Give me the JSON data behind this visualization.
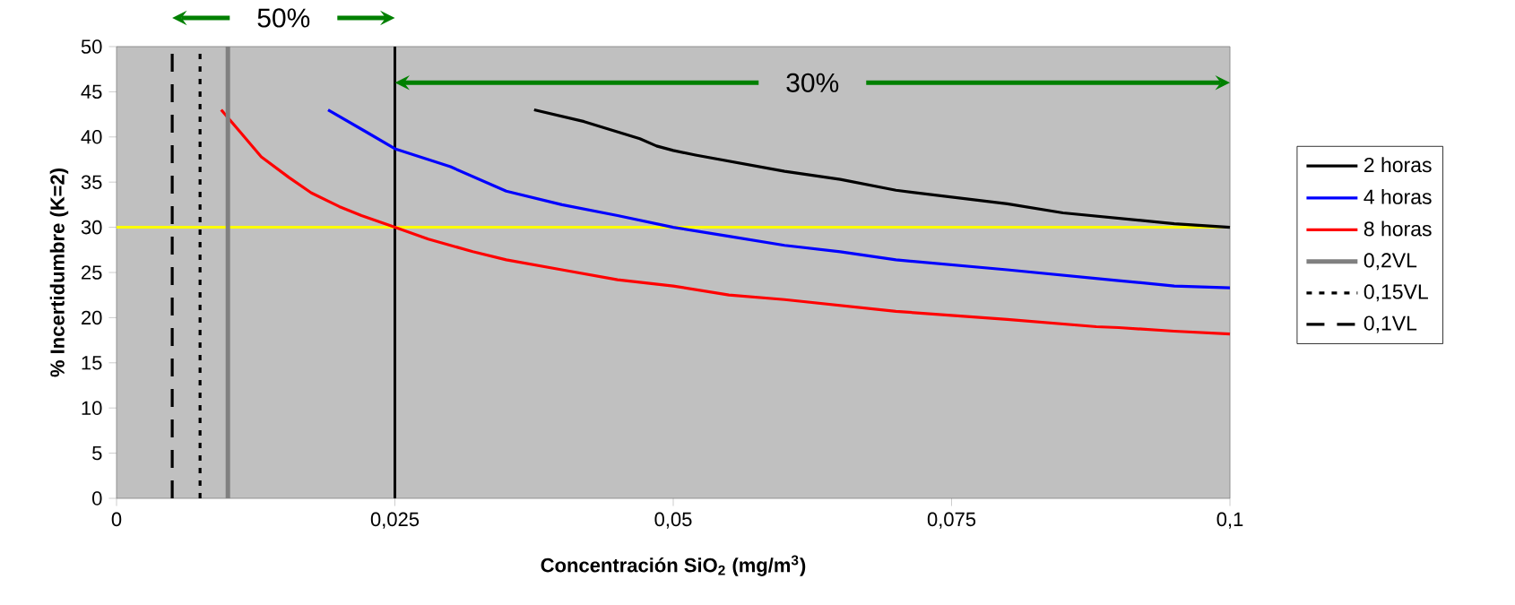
{
  "chart_data": {
    "type": "line",
    "xlabel": "Concentración SiO$_{2}$ (mg/m$^{3}$)",
    "ylabel": "% Incertidumbre (K=2)",
    "xlim": [
      0,
      0.1
    ],
    "ylim": [
      0,
      50
    ],
    "xticks": [
      0,
      {
        "value": 0.025,
        "label": "0,025"
      },
      {
        "value": 0.05,
        "label": "0,05"
      },
      {
        "value": 0.075,
        "label": "0,075"
      },
      {
        "value": 0.1,
        "label": "0,1"
      }
    ],
    "yticks": [
      0,
      5,
      10,
      15,
      20,
      25,
      30,
      35,
      40,
      45,
      50
    ],
    "grid": false,
    "legend": "right",
    "series": [
      {
        "name": "2 horas",
        "color": "#000000",
        "line_style": "solid",
        "x": [
          0.0375,
          0.042,
          0.047,
          0.0485,
          0.05,
          0.052,
          0.06,
          0.065,
          0.07,
          0.08,
          0.085,
          0.09,
          0.095,
          0.1
        ],
        "values": [
          43,
          41.7,
          39.8,
          39,
          38.5,
          38,
          36.2,
          35.3,
          34.1,
          32.6,
          31.6,
          31,
          30.4,
          30
        ]
      },
      {
        "name": "4 horas",
        "color": "#0000ff",
        "line_style": "solid",
        "x": [
          0.019,
          0.0225,
          0.025,
          0.03,
          0.035,
          0.04,
          0.045,
          0.05,
          0.055,
          0.06,
          0.065,
          0.07,
          0.08,
          0.09,
          0.095,
          0.1
        ],
        "values": [
          43,
          40.5,
          38.7,
          36.7,
          34,
          32.5,
          31.3,
          30,
          29,
          28,
          27.3,
          26.4,
          25.3,
          24.1,
          23.5,
          23.3
        ]
      },
      {
        "name": "8 horas",
        "color": "#ff0000",
        "line_style": "solid",
        "x": [
          0.0094,
          0.011,
          0.013,
          0.0155,
          0.0175,
          0.02,
          0.022,
          0.025,
          0.028,
          0.032,
          0.035,
          0.04,
          0.045,
          0.05,
          0.055,
          0.06,
          0.07,
          0.08,
          0.088,
          0.09,
          0.095,
          0.1
        ],
        "values": [
          43,
          40.7,
          37.8,
          35.5,
          33.8,
          32.3,
          31.3,
          30,
          28.7,
          27.3,
          26.4,
          25.3,
          24.2,
          23.5,
          22.5,
          22,
          20.7,
          19.8,
          19,
          18.9,
          18.5,
          18.2
        ]
      },
      {
        "name": "0,2VL",
        "color": "#808080",
        "line_style": "solid",
        "x": [
          0.01,
          0.01
        ],
        "values": [
          0,
          50
        ]
      },
      {
        "name": "0,15VL",
        "color": "#000000",
        "line_style": "dotted",
        "x": [
          0.0075,
          0.0075
        ],
        "values": [
          0,
          50
        ]
      },
      {
        "name": "0,1VL",
        "color": "#000000",
        "line_style": "dashed",
        "x": [
          0.005,
          0.005
        ],
        "values": [
          0,
          50
        ]
      }
    ],
    "ref_lines": [
      {
        "axis": "x",
        "value": 0.025,
        "color": "#000000"
      },
      {
        "axis": "y",
        "value": 30,
        "color": "#ffff00"
      }
    ],
    "annotations": [
      "50%",
      "30%"
    ]
  }
}
